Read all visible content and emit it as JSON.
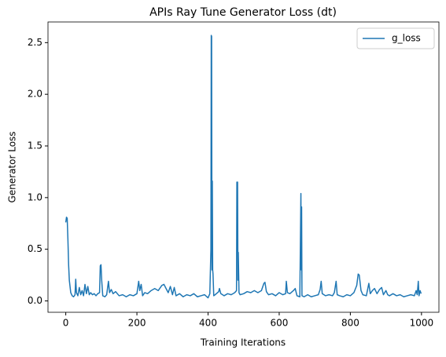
{
  "chart_data": {
    "type": "line",
    "title": "APIs Ray Tune Generator Loss (dt)",
    "xlabel": "Training Iterations",
    "ylabel": "Generator Loss",
    "x": [
      0,
      2,
      4,
      6,
      8,
      10,
      14,
      18,
      22,
      26,
      28,
      30,
      34,
      38,
      42,
      46,
      50,
      54,
      58,
      62,
      66,
      70,
      75,
      80,
      85,
      90,
      95,
      97,
      99,
      101,
      104,
      110,
      115,
      120,
      123,
      128,
      133,
      140,
      150,
      160,
      170,
      180,
      190,
      200,
      205,
      208,
      212,
      216,
      222,
      230,
      240,
      250,
      260,
      270,
      276,
      282,
      288,
      294,
      300,
      305,
      310,
      320,
      330,
      340,
      350,
      360,
      370,
      380,
      390,
      400,
      405,
      408,
      409,
      410,
      411,
      412,
      413,
      414,
      416,
      420,
      430,
      432,
      436,
      445,
      455,
      465,
      475,
      480,
      481,
      483,
      484,
      485,
      487,
      490,
      500,
      510,
      520,
      530,
      540,
      550,
      557,
      560,
      564,
      570,
      580,
      590,
      600,
      610,
      618,
      620,
      623,
      630,
      640,
      645,
      650,
      658,
      661,
      662,
      663,
      664,
      670,
      680,
      690,
      700,
      710,
      715,
      718,
      721,
      730,
      740,
      750,
      755,
      760,
      763,
      770,
      780,
      790,
      800,
      810,
      818,
      822,
      825,
      830,
      835,
      845,
      852,
      856,
      862,
      868,
      875,
      882,
      888,
      893,
      900,
      905,
      910,
      920,
      930,
      940,
      950,
      960,
      970,
      980,
      985,
      988,
      991,
      993,
      996,
      999
    ],
    "series": [
      {
        "name": "g_loss",
        "color": "#1f77b4",
        "values": [
          0.76,
          0.81,
          0.8,
          0.6,
          0.35,
          0.2,
          0.08,
          0.05,
          0.04,
          0.06,
          0.21,
          0.08,
          0.05,
          0.13,
          0.06,
          0.1,
          0.05,
          0.16,
          0.07,
          0.14,
          0.06,
          0.08,
          0.06,
          0.07,
          0.05,
          0.07,
          0.08,
          0.34,
          0.35,
          0.2,
          0.05,
          0.04,
          0.06,
          0.19,
          0.08,
          0.11,
          0.07,
          0.09,
          0.05,
          0.06,
          0.04,
          0.06,
          0.05,
          0.07,
          0.19,
          0.1,
          0.16,
          0.05,
          0.08,
          0.07,
          0.1,
          0.12,
          0.1,
          0.15,
          0.16,
          0.12,
          0.08,
          0.14,
          0.06,
          0.13,
          0.05,
          0.07,
          0.04,
          0.06,
          0.05,
          0.07,
          0.04,
          0.05,
          0.06,
          0.03,
          0.07,
          0.5,
          2.57,
          2.56,
          0.3,
          1.16,
          0.3,
          0.26,
          0.05,
          0.06,
          0.09,
          0.12,
          0.07,
          0.05,
          0.07,
          0.06,
          0.08,
          0.1,
          1.15,
          1.15,
          0.2,
          0.47,
          0.08,
          0.06,
          0.07,
          0.09,
          0.08,
          0.1,
          0.08,
          0.1,
          0.17,
          0.18,
          0.09,
          0.06,
          0.07,
          0.05,
          0.08,
          0.06,
          0.07,
          0.19,
          0.08,
          0.07,
          0.1,
          0.12,
          0.05,
          0.04,
          1.04,
          0.3,
          0.91,
          0.05,
          0.04,
          0.06,
          0.04,
          0.05,
          0.06,
          0.11,
          0.19,
          0.07,
          0.05,
          0.06,
          0.05,
          0.08,
          0.19,
          0.06,
          0.05,
          0.04,
          0.06,
          0.05,
          0.08,
          0.15,
          0.26,
          0.25,
          0.1,
          0.06,
          0.05,
          0.17,
          0.07,
          0.1,
          0.12,
          0.07,
          0.11,
          0.13,
          0.06,
          0.1,
          0.06,
          0.05,
          0.07,
          0.05,
          0.06,
          0.04,
          0.05,
          0.06,
          0.05,
          0.1,
          0.06,
          0.19,
          0.05,
          0.1,
          0.07
        ]
      }
    ],
    "xlim": [
      -50,
      1049
    ],
    "ylim": [
      -0.11,
      2.7
    ],
    "xticks": [
      0,
      200,
      400,
      600,
      800,
      1000
    ],
    "yticks": [
      {
        "value": 0,
        "label": "0.0"
      },
      0.5,
      {
        "value": 1,
        "label": "1.0"
      },
      1.5,
      {
        "value": 2,
        "label": "2.0"
      },
      2.5
    ],
    "legend": "upper right",
    "grid": false
  }
}
